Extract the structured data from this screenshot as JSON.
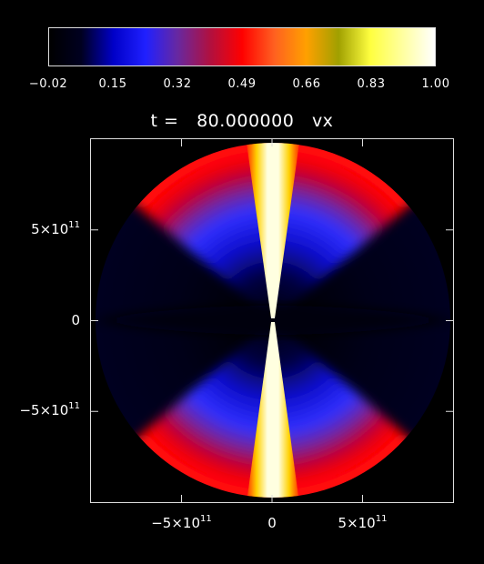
{
  "colorbar": {
    "tick_labels": [
      "-0.02",
      "0.15",
      "0.32",
      "0.49",
      "0.66",
      "0.83",
      "1.00"
    ],
    "colors": [
      "#000000",
      "#000020",
      "#0000c8",
      "#2020ff",
      "#6828a0",
      "#b01040",
      "#ff0000",
      "#ff6020",
      "#ffa000",
      "#a0a000",
      "#ffff40",
      "#ffffa0",
      "#ffffff"
    ]
  },
  "title": "t =   80.000000   vx",
  "axes": {
    "x_ticks": [
      {
        "value": -500000000000.0,
        "mantissa": "−5×10",
        "exp": "11"
      },
      {
        "value": 0,
        "mantissa": "0",
        "exp": ""
      },
      {
        "value": 500000000000.0,
        "mantissa": "5×10",
        "exp": "11"
      }
    ],
    "y_ticks": [
      {
        "value": 500000000000.0,
        "mantissa": "5×10",
        "exp": "11"
      },
      {
        "value": 0,
        "mantissa": "0",
        "exp": ""
      },
      {
        "value": -500000000000.0,
        "mantissa": "−5×10",
        "exp": "11"
      }
    ]
  },
  "chart_data": {
    "type": "heatmap",
    "title": "t =   80.000000   vx",
    "xlabel": "",
    "ylabel": "",
    "xlim": [
      -1000000000000.0,
      1000000000000.0
    ],
    "ylim": [
      -1000000000000.0,
      1000000000000.0
    ],
    "color_range": [
      -0.02,
      1.0
    ],
    "colorbar_ticks": [
      -0.02,
      0.15,
      0.32,
      0.49,
      0.66,
      0.83,
      1.0
    ],
    "domain": "circular disk of radius ~1.0e12 centered at origin",
    "features": [
      {
        "region": "narrow vertical jet along x=0 (top and bottom)",
        "value_approx": 1.0
      },
      {
        "region": "outer rim wedges near top and bottom",
        "value_approx": 0.42
      },
      {
        "region": "mid-latitude bands",
        "value_approx": 0.18
      },
      {
        "region": "equatorial region near y=0",
        "value_approx": 0.0
      }
    ]
  }
}
